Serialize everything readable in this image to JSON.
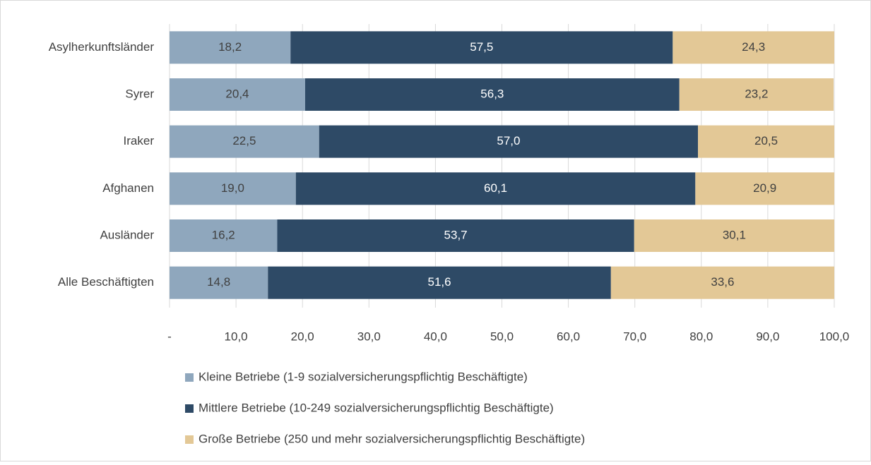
{
  "chart_data": {
    "type": "stacked-bar-horizontal",
    "categories": [
      "Asylherkunftsländer",
      "Syrer",
      "Iraker",
      "Afghanen",
      "Ausländer",
      "Alle Beschäftigten"
    ],
    "series": [
      {
        "name": "Kleine Betriebe (1-9 sozialversicherungspflichtig Beschäftigte)",
        "color": "#8fa7bd",
        "label_color": "#404040",
        "values": [
          18.2,
          20.4,
          22.5,
          19.0,
          16.2,
          14.8
        ],
        "value_labels": [
          "18,2",
          "20,4",
          "22,5",
          "19,0",
          "16,2",
          "14,8"
        ]
      },
      {
        "name": "Mittlere Betriebe (10-249 sozialversicherungspflichtig Beschäftigte)",
        "color": "#2e4a66",
        "label_color": "#ffffff",
        "values": [
          57.5,
          56.3,
          57.0,
          60.1,
          53.7,
          51.6
        ],
        "value_labels": [
          "57,5",
          "56,3",
          "57,0",
          "60,1",
          "53,7",
          "51,6"
        ]
      },
      {
        "name": "Große Betriebe (250 und mehr sozialversicherungspflichtig Beschäftigte)",
        "color": "#e3c896",
        "label_color": "#404040",
        "values": [
          24.3,
          23.2,
          20.5,
          20.9,
          30.1,
          33.6
        ],
        "value_labels": [
          "24,3",
          "23,2",
          "20,5",
          "20,9",
          "30,1",
          "33,6"
        ]
      }
    ],
    "xlim": [
      0,
      100
    ],
    "xticks": [
      {
        "value": 0,
        "label": "-"
      },
      {
        "value": 10,
        "label": "10,0"
      },
      {
        "value": 20,
        "label": "20,0"
      },
      {
        "value": 30,
        "label": "30,0"
      },
      {
        "value": 40,
        "label": "40,0"
      },
      {
        "value": 50,
        "label": "50,0"
      },
      {
        "value": 60,
        "label": "60,0"
      },
      {
        "value": 70,
        "label": "70,0"
      },
      {
        "value": 80,
        "label": "80,0"
      },
      {
        "value": 90,
        "label": "90,0"
      },
      {
        "value": 100,
        "label": "100,0"
      }
    ],
    "grid": true,
    "legend": "bottom"
  }
}
